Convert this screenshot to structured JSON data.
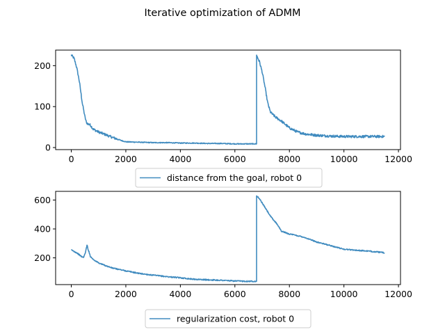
{
  "title": "Iterative optimization of ADMM",
  "colors": {
    "line": "#1f77b4",
    "axes": "#000000",
    "legend_border": "#cccccc"
  },
  "chart_data": [
    {
      "type": "line",
      "title": "",
      "xlabel": "",
      "ylabel": "",
      "xlim": [
        -575,
        12075
      ],
      "ylim": [
        -5,
        238
      ],
      "xticks": [
        0,
        2000,
        4000,
        6000,
        8000,
        10000,
        12000
      ],
      "xtick_labels": [
        "0",
        "2000",
        "4000",
        "6000",
        "8000",
        "10000",
        "12000"
      ],
      "yticks": [
        0,
        100,
        200
      ],
      "ytick_labels": [
        "0",
        "100",
        "200"
      ],
      "grid": false,
      "legend_position": "below",
      "series": [
        {
          "name": "distance from the goal, robot 0",
          "noise": 6,
          "x": [
            0,
            100,
            200,
            300,
            400,
            500,
            550,
            600,
            700,
            800,
            1000,
            1200,
            1500,
            1800,
            2000,
            2500,
            3000,
            3500,
            4000,
            4500,
            5000,
            5500,
            6000,
            6500,
            6790,
            6800,
            6810,
            6900,
            7000,
            7100,
            7200,
            7300,
            7400,
            7500,
            7700,
            8000,
            8300,
            8600,
            9000,
            9500,
            10000,
            10500,
            11000,
            11500
          ],
          "y": [
            226,
            218,
            195,
            160,
            110,
            75,
            62,
            58,
            55,
            45,
            38,
            33,
            25,
            18,
            14,
            13,
            12,
            12,
            11,
            11,
            10,
            10,
            9,
            9,
            9,
            226,
            223,
            210,
            185,
            150,
            110,
            87,
            80,
            74,
            65,
            48,
            38,
            33,
            30,
            28,
            27,
            27,
            27,
            27
          ]
        }
      ]
    },
    {
      "type": "line",
      "title": "",
      "xlabel": "",
      "ylabel": "",
      "xlim": [
        -575,
        12075
      ],
      "ylim": [
        15,
        660
      ],
      "xticks": [
        0,
        2000,
        4000,
        6000,
        8000,
        10000,
        12000
      ],
      "xtick_labels": [
        "0",
        "2000",
        "4000",
        "6000",
        "8000",
        "10000",
        "12000"
      ],
      "yticks": [
        200,
        400,
        600
      ],
      "ytick_labels": [
        "200",
        "400",
        "600"
      ],
      "grid": false,
      "legend_position": "below",
      "series": [
        {
          "name": "regularization cost, robot 0",
          "noise": 8,
          "x": [
            0,
            100,
            200,
            300,
            400,
            450,
            500,
            550,
            580,
            600,
            650,
            700,
            800,
            1000,
            1200,
            1500,
            2000,
            2500,
            3000,
            3500,
            4000,
            4500,
            5000,
            5500,
            6000,
            6500,
            6790,
            6800,
            6810,
            6900,
            7000,
            7200,
            7300,
            7400,
            7500,
            7600,
            7700,
            8000,
            8500,
            9000,
            9500,
            10000,
            10500,
            11000,
            11500
          ],
          "y": [
            255,
            245,
            235,
            220,
            205,
            205,
            225,
            265,
            290,
            270,
            240,
            210,
            190,
            165,
            150,
            130,
            110,
            92,
            80,
            70,
            62,
            52,
            48,
            45,
            40,
            38,
            38,
            628,
            625,
            610,
            580,
            520,
            490,
            465,
            445,
            420,
            385,
            365,
            345,
            310,
            285,
            260,
            252,
            245,
            235
          ]
        }
      ]
    }
  ]
}
